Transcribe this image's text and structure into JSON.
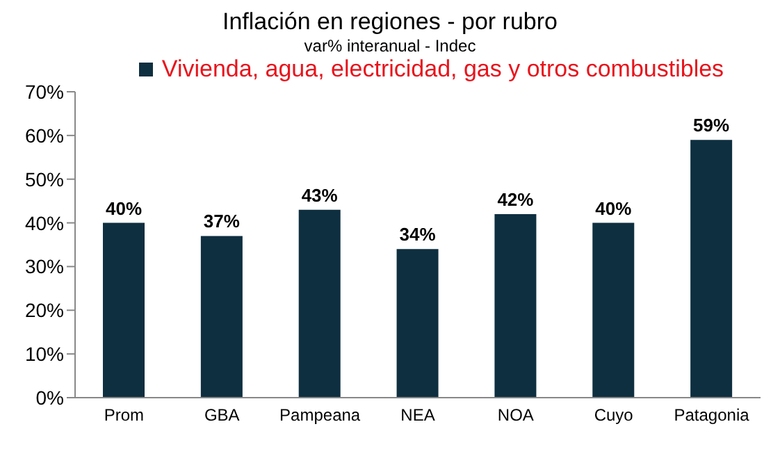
{
  "chart_data": {
    "type": "bar",
    "title": "Inflación en regiones - por rubro",
    "subtitle": "var% interanual - Indec",
    "categories": [
      "Prom",
      "GBA",
      "Pampeana",
      "NEA",
      "NOA",
      "Cuyo",
      "Patagonia"
    ],
    "series": [
      {
        "name": "Vivienda, agua, electricidad, gas y otros combustibles",
        "color": "#0e2f40",
        "values": [
          40,
          37,
          43,
          34,
          42,
          40,
          59
        ],
        "value_labels": [
          "40%",
          "37%",
          "43%",
          "34%",
          "42%",
          "40%",
          "59%"
        ]
      }
    ],
    "ylim": [
      0,
      70
    ],
    "yticks": [
      {
        "value": 0,
        "label": "0%"
      },
      {
        "value": 10,
        "label": "10%"
      },
      {
        "value": 20,
        "label": "20%"
      },
      {
        "value": 30,
        "label": "30%"
      },
      {
        "value": 40,
        "label": "40%"
      },
      {
        "value": 50,
        "label": "50%"
      },
      {
        "value": 60,
        "label": "60%"
      },
      {
        "value": 70,
        "label": "70%"
      }
    ],
    "grid": false,
    "legend": "top"
  }
}
